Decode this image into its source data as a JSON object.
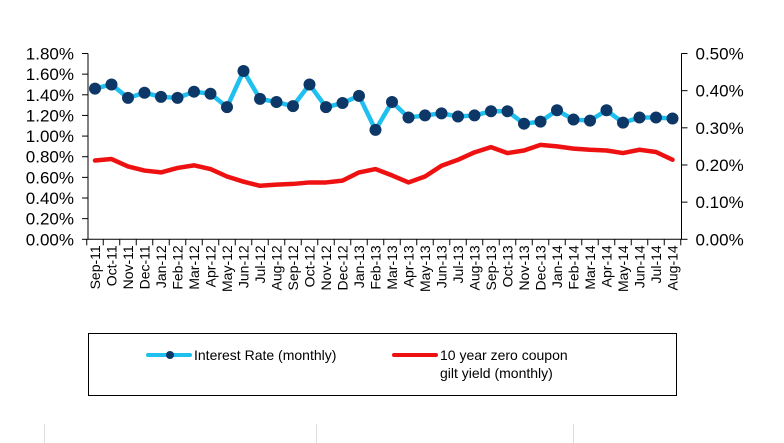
{
  "chart_data": {
    "type": "line",
    "title": "",
    "categories": [
      "Sep-11",
      "Oct-11",
      "Nov-11",
      "Dec-11",
      "Jan-12",
      "Feb-12",
      "Mar-12",
      "Apr-12",
      "May-12",
      "Jun-12",
      "Jul-12",
      "Aug-12",
      "Sep-12",
      "Oct-12",
      "Nov-12",
      "Dec-12",
      "Jan-13",
      "Feb-13",
      "Mar-13",
      "Apr-13",
      "May-13",
      "Jun-13",
      "Jul-13",
      "Aug-13",
      "Sep-13",
      "Oct-13",
      "Nov-13",
      "Dec-13",
      "Jan-14",
      "Feb-14",
      "Mar-14",
      "Apr-14",
      "May-14",
      "Jun-14",
      "Jul-14",
      "Aug-14"
    ],
    "y_left": {
      "ylim": [
        0,
        1.8
      ],
      "ticks": [
        "0.00%",
        "0.20%",
        "0.40%",
        "0.60%",
        "0.80%",
        "1.00%",
        "1.20%",
        "1.40%",
        "1.60%",
        "1.80%"
      ],
      "unit": "%"
    },
    "y_right": {
      "ylim": [
        0,
        0.5
      ],
      "ticks": [
        "0.00%",
        "0.10%",
        "0.20%",
        "0.30%",
        "0.40%",
        "0.50%"
      ],
      "unit": "%"
    },
    "grid": false,
    "legend_position": "bottom",
    "series": [
      {
        "name": "Interest Rate (monthly)",
        "axis": "left",
        "color": "#1fbfef",
        "marker_color": "#0d3766",
        "values": [
          1.46,
          1.5,
          1.37,
          1.42,
          1.38,
          1.37,
          1.43,
          1.41,
          1.28,
          1.63,
          1.36,
          1.33,
          1.29,
          1.5,
          1.28,
          1.32,
          1.39,
          1.06,
          1.33,
          1.18,
          1.2,
          1.22,
          1.19,
          1.2,
          1.24,
          1.24,
          1.12,
          1.14,
          1.25,
          1.16,
          1.15,
          1.25,
          1.13,
          1.18,
          1.18,
          1.17
        ]
      },
      {
        "name": "10 year zero coupon gilt yield (monthly)",
        "name_lines": [
          "10 year zero coupon",
          "gilt yield (monthly)"
        ],
        "axis": "right",
        "color": "#ee1111",
        "values": [
          0.212,
          0.216,
          0.196,
          0.185,
          0.18,
          0.192,
          0.199,
          0.189,
          0.169,
          0.155,
          0.144,
          0.147,
          0.149,
          0.153,
          0.153,
          0.158,
          0.18,
          0.189,
          0.172,
          0.153,
          0.169,
          0.198,
          0.214,
          0.234,
          0.248,
          0.232,
          0.239,
          0.254,
          0.25,
          0.244,
          0.241,
          0.239,
          0.232,
          0.241,
          0.235,
          0.214
        ]
      }
    ]
  }
}
